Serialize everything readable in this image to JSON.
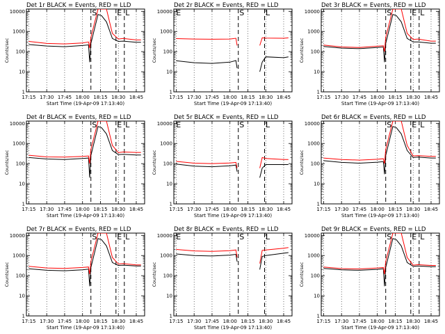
{
  "figure": {
    "x_label": "Start Time (19-Apr-09 17:13:40)",
    "y_label": "Counts/sec",
    "x_ticks": [
      "17:15",
      "17:30",
      "17:45",
      "18:00",
      "18:15",
      "18:30",
      "18:45"
    ],
    "y_ticks": [
      "1",
      "10",
      "100",
      "1000",
      "10000"
    ],
    "markers": {
      "E": "E",
      "S": "S",
      "L": "L"
    },
    "colors": {
      "events": "#000000",
      "lld": "#ff0000"
    }
  },
  "chart_data": [
    {
      "type": "line",
      "title": "Det 1r BLACK = Events, RED = LLD",
      "xlim": [
        "17:13",
        "18:52"
      ],
      "ylim": [
        1,
        13000
      ],
      "y_scale": "log",
      "grid": "vertical dotted at tick times",
      "markers": {
        "S": "18:07",
        "E": "18:28",
        "L": "18:35"
      },
      "series": [
        {
          "name": "BLACK = Events",
          "x": [
            "17:15",
            "17:30",
            "17:45",
            "18:00",
            "18:05",
            "18:06",
            "18:07",
            "18:13",
            "18:16",
            "18:20",
            "18:25",
            "18:30",
            "18:34",
            "18:45",
            "18:49"
          ],
          "y": [
            225,
            190,
            175,
            200,
            215,
            30,
            250,
            7000,
            6000,
            3000,
            450,
            320,
            330,
            290,
            290
          ]
        },
        {
          "name": "RED = LLD",
          "x": [
            "17:15",
            "17:30",
            "17:45",
            "18:00",
            "18:05",
            "18:06",
            "18:07",
            "18:13",
            "18:16",
            "18:20",
            "18:25",
            "18:30",
            "18:34",
            "18:45",
            "18:49"
          ],
          "y": [
            320,
            255,
            240,
            270,
            300,
            150,
            500,
            14000,
            14000,
            14000,
            800,
            420,
            450,
            380,
            380
          ]
        }
      ]
    },
    {
      "type": "line",
      "title": "Det 2r BLACK = Events, RED = LLD",
      "xlim": [
        "17:13",
        "18:52"
      ],
      "ylim": [
        1,
        13000
      ],
      "y_scale": "log",
      "grid": "vertical dotted at tick times",
      "markers": {
        "E": "17:14",
        "S": "18:07",
        "L": "18:29"
      },
      "series": [
        {
          "name": "BLACK = Events",
          "x": [
            "17:15",
            "17:30",
            "17:45",
            "18:00",
            "18:05",
            "18:06",
            "18:07",
            "18:25",
            "18:27",
            "18:30",
            "18:45",
            "18:49"
          ],
          "y": [
            35,
            28,
            26,
            30,
            36,
            15,
            "break",
            10,
            30,
            55,
            50,
            55
          ]
        },
        {
          "name": "RED = LLD",
          "x": [
            "17:15",
            "17:30",
            "17:45",
            "18:00",
            "18:05",
            "18:06",
            "18:07",
            "18:25",
            "18:27",
            "18:30",
            "18:45",
            "18:49"
          ],
          "y": [
            440,
            420,
            410,
            420,
            460,
            200,
            "break",
            200,
            480,
            470,
            460,
            480
          ]
        }
      ]
    },
    {
      "type": "line",
      "title": "Det 3r BLACK = Events, RED = LLD",
      "xlim": [
        "17:13",
        "18:52"
      ],
      "ylim": [
        1,
        13000
      ],
      "y_scale": "log",
      "grid": "vertical dotted at tick times",
      "markers": {
        "S": "18:07",
        "E": "18:28",
        "L": "18:35"
      },
      "series": [
        {
          "name": "BLACK = Events",
          "x": [
            "17:15",
            "17:30",
            "17:45",
            "18:00",
            "18:05",
            "18:06",
            "18:07",
            "18:13",
            "18:16",
            "18:20",
            "18:25",
            "18:30",
            "18:34",
            "18:45",
            "18:49"
          ],
          "y": [
            180,
            150,
            140,
            160,
            170,
            30,
            250,
            7000,
            6000,
            3000,
            450,
            300,
            300,
            260,
            260
          ]
        },
        {
          "name": "RED = LLD",
          "x": [
            "17:15",
            "17:30",
            "17:45",
            "18:00",
            "18:05",
            "18:06",
            "18:07",
            "18:13",
            "18:16",
            "18:20",
            "18:25",
            "18:30",
            "18:34",
            "18:45",
            "18:49"
          ],
          "y": [
            210,
            170,
            160,
            185,
            195,
            100,
            500,
            14000,
            14000,
            14000,
            800,
            400,
            420,
            330,
            330
          ]
        }
      ]
    },
    {
      "type": "line",
      "title": "Det 4r BLACK = Events, RED = LLD",
      "xlim": [
        "17:13",
        "18:52"
      ],
      "ylim": [
        1,
        13000
      ],
      "y_scale": "log",
      "grid": "vertical dotted at tick times",
      "markers": {
        "S": "18:07",
        "E": "18:28",
        "L": "18:35"
      },
      "series": [
        {
          "name": "BLACK = Events",
          "x": [
            "17:15",
            "17:30",
            "17:45",
            "18:00",
            "18:05",
            "18:06",
            "18:07",
            "18:13",
            "18:16",
            "18:20",
            "18:25",
            "18:30",
            "18:34",
            "18:45",
            "18:49"
          ],
          "y": [
            200,
            170,
            160,
            180,
            190,
            20,
            250,
            7000,
            6000,
            3000,
            450,
            280,
            290,
            270,
            270
          ]
        },
        {
          "name": "RED = LLD",
          "x": [
            "17:15",
            "17:30",
            "17:45",
            "18:00",
            "18:05",
            "18:06",
            "18:07",
            "18:13",
            "18:16",
            "18:20",
            "18:25",
            "18:30",
            "18:34",
            "18:45",
            "18:49"
          ],
          "y": [
            260,
            215,
            210,
            230,
            240,
            100,
            500,
            14000,
            14000,
            14000,
            800,
            350,
            380,
            360,
            360
          ]
        }
      ]
    },
    {
      "type": "line",
      "title": "Det 5r BLACK = Events, RED = LLD",
      "xlim": [
        "17:13",
        "18:52"
      ],
      "ylim": [
        1,
        13000
      ],
      "y_scale": "log",
      "grid": "vertical dotted at tick times",
      "markers": {
        "E": "17:14",
        "S": "18:07",
        "L": "18:29"
      },
      "series": [
        {
          "name": "BLACK = Events",
          "x": [
            "17:15",
            "17:30",
            "17:45",
            "18:00",
            "18:05",
            "18:06",
            "18:07",
            "18:25",
            "18:27",
            "18:30",
            "18:45",
            "18:49"
          ],
          "y": [
            95,
            75,
            70,
            78,
            85,
            40,
            "break",
            20,
            60,
            90,
            90,
            90
          ]
        },
        {
          "name": "RED = LLD",
          "x": [
            "17:15",
            "17:30",
            "17:45",
            "18:00",
            "18:05",
            "18:06",
            "18:07",
            "18:25",
            "18:27",
            "18:30",
            "18:45",
            "18:49"
          ],
          "y": [
            130,
            105,
            100,
            108,
            115,
            60,
            "break",
            60,
            200,
            180,
            160,
            160
          ]
        }
      ]
    },
    {
      "type": "line",
      "title": "Det 6r BLACK = Events, RED = LLD",
      "xlim": [
        "17:13",
        "18:52"
      ],
      "ylim": [
        1,
        13000
      ],
      "y_scale": "log",
      "grid": "vertical dotted at tick times",
      "markers": {
        "S": "18:07",
        "E": "18:28",
        "L": "18:35"
      },
      "series": [
        {
          "name": "BLACK = Events",
          "x": [
            "17:15",
            "17:30",
            "17:45",
            "18:00",
            "18:05",
            "18:06",
            "18:07",
            "18:13",
            "18:16",
            "18:20",
            "18:25",
            "18:30",
            "18:34",
            "18:45",
            "18:49"
          ],
          "y": [
            140,
            115,
            105,
            118,
            125,
            30,
            250,
            7000,
            6000,
            3000,
            450,
            200,
            210,
            190,
            190
          ]
        },
        {
          "name": "RED = LLD",
          "x": [
            "17:15",
            "17:30",
            "17:45",
            "18:00",
            "18:05",
            "18:06",
            "18:07",
            "18:13",
            "18:16",
            "18:20",
            "18:25",
            "18:30",
            "18:34",
            "18:45",
            "18:49"
          ],
          "y": [
            190,
            160,
            150,
            165,
            175,
            100,
            500,
            14000,
            14000,
            14000,
            800,
            240,
            250,
            230,
            230
          ]
        }
      ]
    },
    {
      "type": "line",
      "title": "Det 7r BLACK = Events, RED = LLD",
      "xlim": [
        "17:13",
        "18:52"
      ],
      "ylim": [
        1,
        13000
      ],
      "y_scale": "log",
      "grid": "vertical dotted at tick times",
      "markers": {
        "S": "18:07",
        "E": "18:28",
        "L": "18:35"
      },
      "series": [
        {
          "name": "BLACK = Events",
          "x": [
            "17:15",
            "17:30",
            "17:45",
            "18:00",
            "18:05",
            "18:06",
            "18:07",
            "18:13",
            "18:16",
            "18:20",
            "18:25",
            "18:30",
            "18:34",
            "18:45",
            "18:49"
          ],
          "y": [
            220,
            185,
            175,
            195,
            210,
            30,
            250,
            7000,
            6000,
            3000,
            450,
            320,
            330,
            300,
            300
          ]
        },
        {
          "name": "RED = LLD",
          "x": [
            "17:15",
            "17:30",
            "17:45",
            "18:00",
            "18:05",
            "18:06",
            "18:07",
            "18:13",
            "18:16",
            "18:20",
            "18:25",
            "18:30",
            "18:34",
            "18:45",
            "18:49"
          ],
          "y": [
            290,
            240,
            230,
            255,
            270,
            120,
            500,
            14000,
            14000,
            14000,
            800,
            380,
            400,
            340,
            340
          ]
        }
      ]
    },
    {
      "type": "line",
      "title": "Det 8r BLACK = Events, RED = LLD",
      "xlim": [
        "17:13",
        "18:52"
      ],
      "ylim": [
        1,
        13000
      ],
      "y_scale": "log",
      "grid": "vertical dotted at tick times",
      "markers": {
        "E": "17:14",
        "S": "18:07",
        "L": "18:29"
      },
      "series": [
        {
          "name": "BLACK = Events",
          "x": [
            "17:15",
            "17:30",
            "17:45",
            "18:00",
            "18:05",
            "18:06",
            "18:07",
            "18:25",
            "18:27",
            "18:30",
            "18:45",
            "18:49"
          ],
          "y": [
            1200,
            1000,
            950,
            1050,
            1150,
            500,
            "break",
            200,
            900,
            1000,
            1300,
            1400
          ]
        },
        {
          "name": "RED = LLD",
          "x": [
            "17:15",
            "17:30",
            "17:45",
            "18:00",
            "18:05",
            "18:06",
            "18:07",
            "18:25",
            "18:27",
            "18:30",
            "18:45",
            "18:49"
          ],
          "y": [
            2000,
            1700,
            1600,
            1750,
            1900,
            800,
            "break",
            400,
            1800,
            1900,
            2300,
            2500
          ]
        }
      ]
    },
    {
      "type": "line",
      "title": "Det 9r BLACK = Events, RED = LLD",
      "xlim": [
        "17:13",
        "18:52"
      ],
      "ylim": [
        1,
        13000
      ],
      "y_scale": "log",
      "grid": "vertical dotted at tick times",
      "markers": {
        "S": "18:07",
        "E": "18:28",
        "L": "18:35"
      },
      "series": [
        {
          "name": "BLACK = Events",
          "x": [
            "17:15",
            "17:30",
            "17:45",
            "18:00",
            "18:05",
            "18:06",
            "18:07",
            "18:13",
            "18:16",
            "18:20",
            "18:25",
            "18:30",
            "18:34",
            "18:45",
            "18:49"
          ],
          "y": [
            230,
            195,
            185,
            205,
            220,
            30,
            250,
            7000,
            6000,
            3000,
            450,
            290,
            300,
            280,
            280
          ]
        },
        {
          "name": "RED = LLD",
          "x": [
            "17:15",
            "17:30",
            "17:45",
            "18:00",
            "18:05",
            "18:06",
            "18:07",
            "18:13",
            "18:16",
            "18:20",
            "18:25",
            "18:30",
            "18:34",
            "18:45",
            "18:49"
          ],
          "y": [
            270,
            225,
            215,
            240,
            255,
            120,
            500,
            14000,
            14000,
            14000,
            800,
            330,
            350,
            320,
            320
          ]
        }
      ]
    }
  ]
}
